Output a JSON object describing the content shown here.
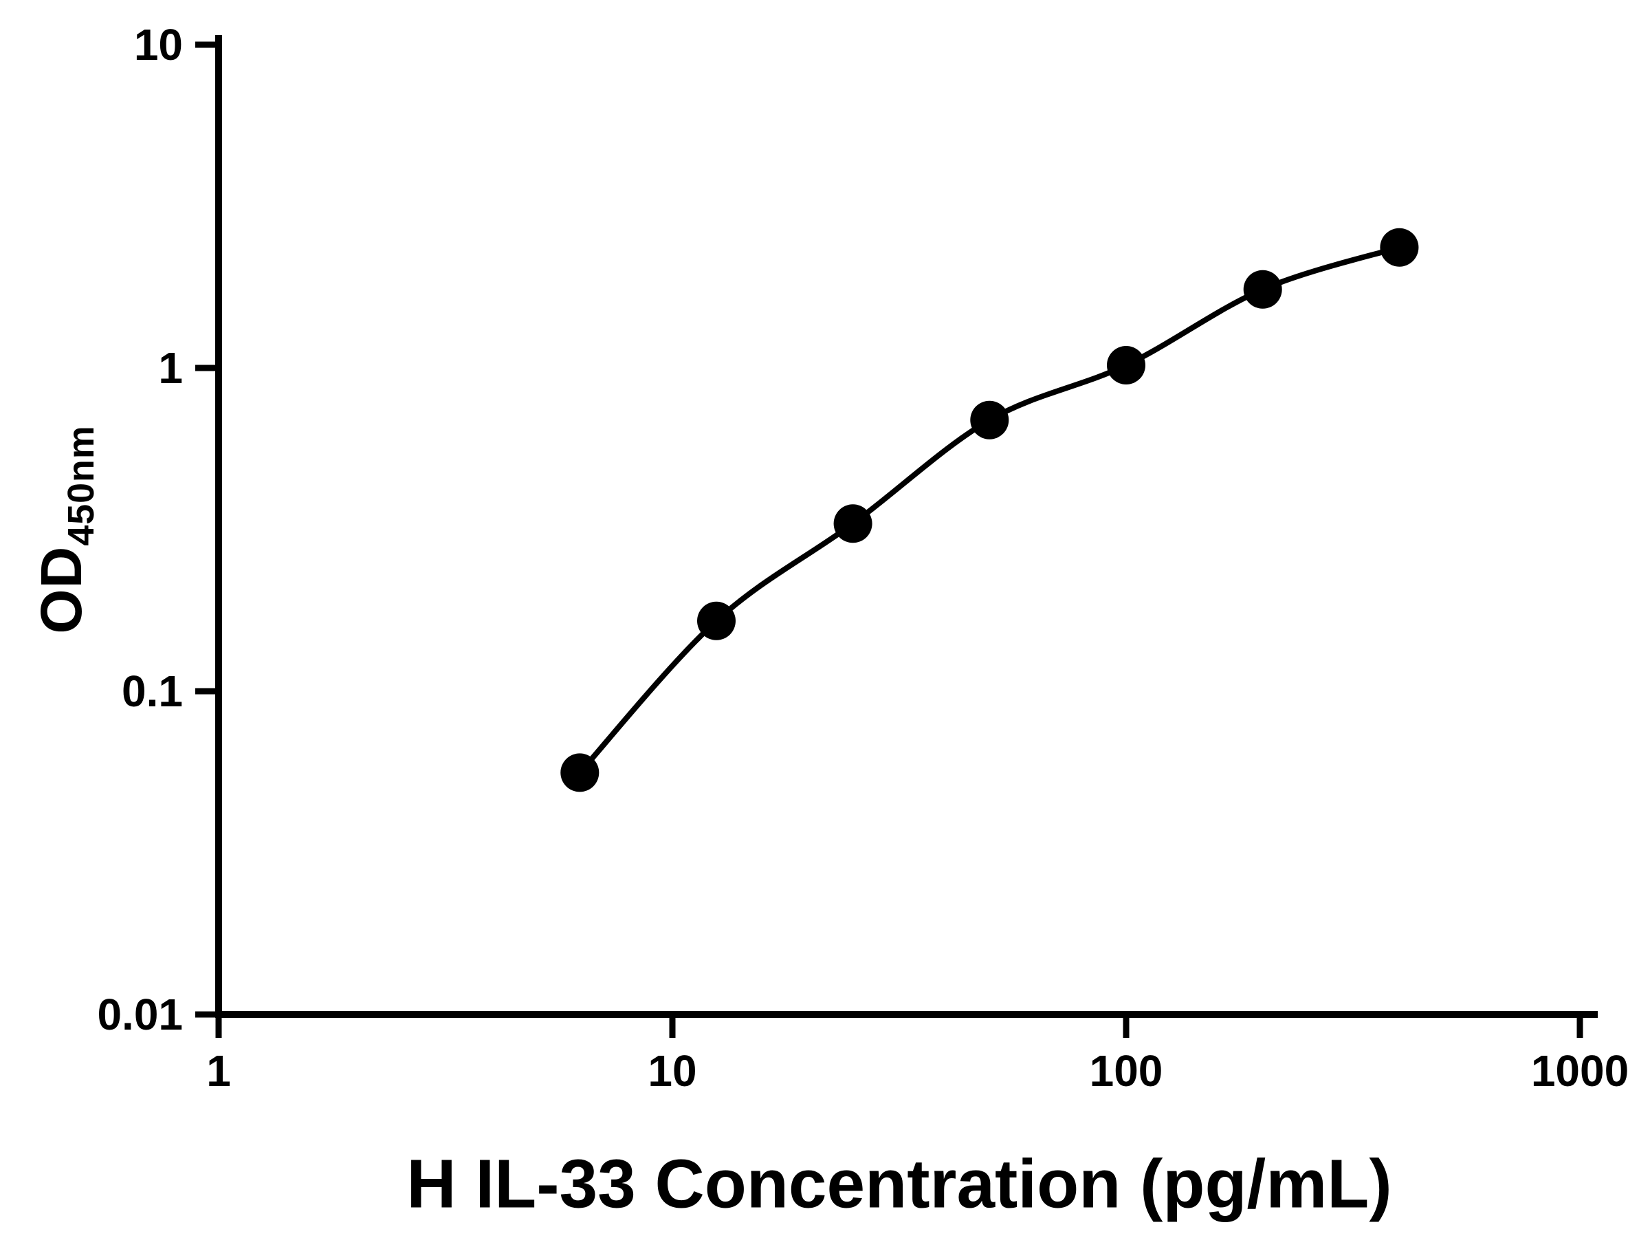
{
  "chart_data": {
    "type": "scatter",
    "title": "",
    "xlabel": "H IL-33 Concentration (pg/mL)",
    "ylabel_main": "OD",
    "ylabel_sub": "450nm",
    "xscale": "log",
    "yscale": "log",
    "xlim": [
      1,
      1000
    ],
    "ylim": [
      0.01,
      10
    ],
    "x_ticks": [
      "1",
      "10",
      "100",
      "1000"
    ],
    "y_ticks": [
      "0.01",
      "0.1",
      "1",
      "10"
    ],
    "grid": false,
    "legend": "none",
    "x": [
      6.25,
      12.5,
      25,
      50,
      100,
      200,
      400
    ],
    "y": [
      0.056,
      0.165,
      0.33,
      0.69,
      1.02,
      1.75,
      2.36
    ],
    "marker": "filled-circle",
    "marker_color": "#000000",
    "line_color": "#000000",
    "axis_color": "#000000",
    "background": "#ffffff"
  }
}
